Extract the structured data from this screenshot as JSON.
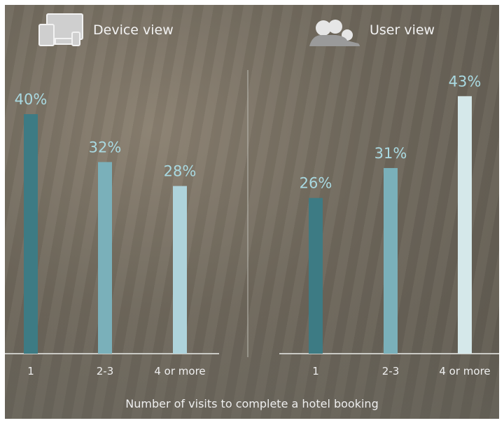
{
  "chart_data": [
    {
      "type": "bar",
      "title": "Device view",
      "categories": [
        "1",
        "2-3",
        "4 or more"
      ],
      "values": [
        40,
        32,
        28
      ],
      "data_labels": [
        "40%",
        "32%",
        "28%"
      ],
      "colors": [
        "#3d7b84",
        "#7ab0ba",
        "#aed3db"
      ],
      "ylim": [
        0,
        45
      ],
      "grid": false,
      "icon": "devices-icon"
    },
    {
      "type": "bar",
      "title": "User view",
      "categories": [
        "1",
        "2-3",
        "4 or more"
      ],
      "values": [
        26,
        31,
        43
      ],
      "data_labels": [
        "26%",
        "31%",
        "43%"
      ],
      "colors": [
        "#3d7b84",
        "#7ab0ba",
        "#d5e8ea"
      ],
      "ylim": [
        0,
        45
      ],
      "grid": false,
      "icon": "users-icon"
    }
  ],
  "xlabel": "Number of visits to complete a hotel booking",
  "label_color": "#a9d9e1"
}
